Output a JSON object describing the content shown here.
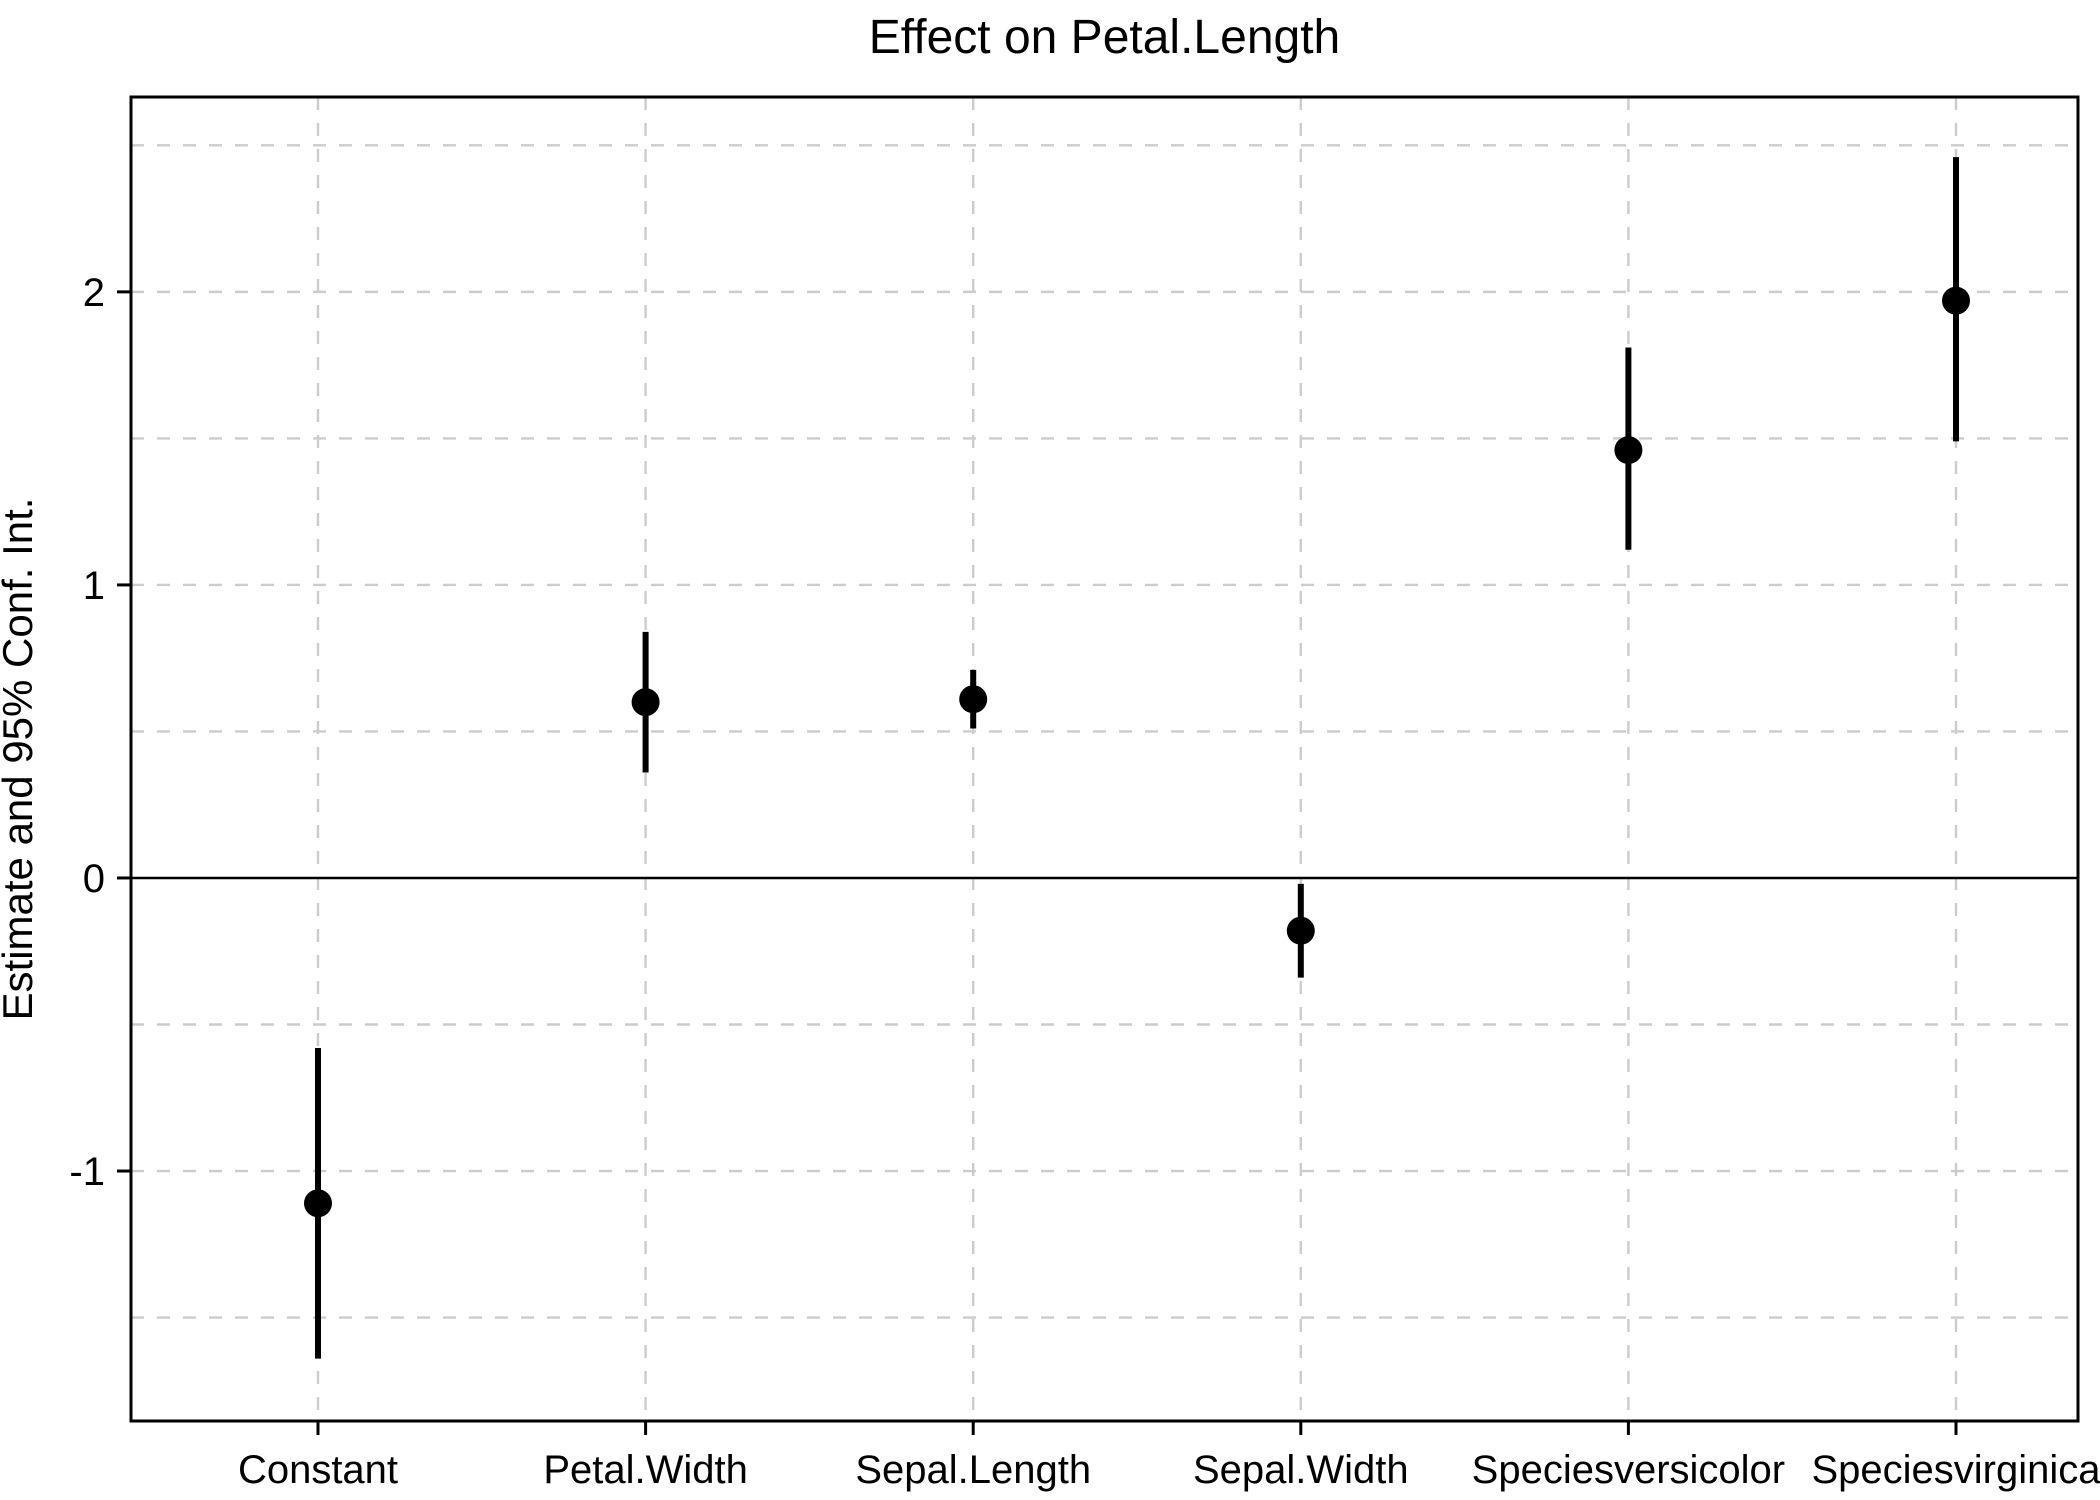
{
  "chart_data": {
    "type": "scatter",
    "subtype": "coefficient-plot-with-error-bars",
    "title": "Effect on Petal.Length",
    "ylabel": "Estimate and 95% Conf. Int.",
    "xlabel": "",
    "categories": [
      "Constant",
      "Petal.Width",
      "Sepal.Length",
      "Sepal.Width",
      "Speciesversicolor",
      "Speciesvirginica"
    ],
    "series": [
      {
        "name": "Estimate and 95% Conf. Int.",
        "points": [
          {
            "category": "Constant",
            "estimate": -1.11,
            "ci_low": -1.64,
            "ci_high": -0.58
          },
          {
            "category": "Petal.Width",
            "estimate": 0.6,
            "ci_low": 0.36,
            "ci_high": 0.84
          },
          {
            "category": "Sepal.Length",
            "estimate": 0.61,
            "ci_low": 0.51,
            "ci_high": 0.71
          },
          {
            "category": "Sepal.Width",
            "estimate": -0.18,
            "ci_low": -0.34,
            "ci_high": -0.02
          },
          {
            "category": "Speciesversicolor",
            "estimate": 1.46,
            "ci_low": 1.12,
            "ci_high": 1.81
          },
          {
            "category": "Speciesvirginica",
            "estimate": 1.97,
            "ci_low": 1.49,
            "ci_high": 2.46
          }
        ]
      }
    ],
    "y_ticks": [
      {
        "value": -1,
        "label": "-1"
      },
      {
        "value": 0,
        "label": "0"
      },
      {
        "value": 1,
        "label": "1"
      },
      {
        "value": 2,
        "label": "2"
      }
    ],
    "y_gridlines": [
      -1.5,
      -1,
      -0.5,
      0.5,
      1,
      1.5,
      2,
      2.5
    ],
    "ylim": [
      -1.853,
      2.665
    ],
    "reference_line": 0,
    "grid": "dashed",
    "legend_position": "none",
    "colors": {
      "point": "#000000",
      "error_bar": "#000000",
      "gridline": "#cccccc",
      "axis": "#000000",
      "reference_line": "#000000",
      "background": "#ffffff",
      "text": "#000000"
    }
  }
}
